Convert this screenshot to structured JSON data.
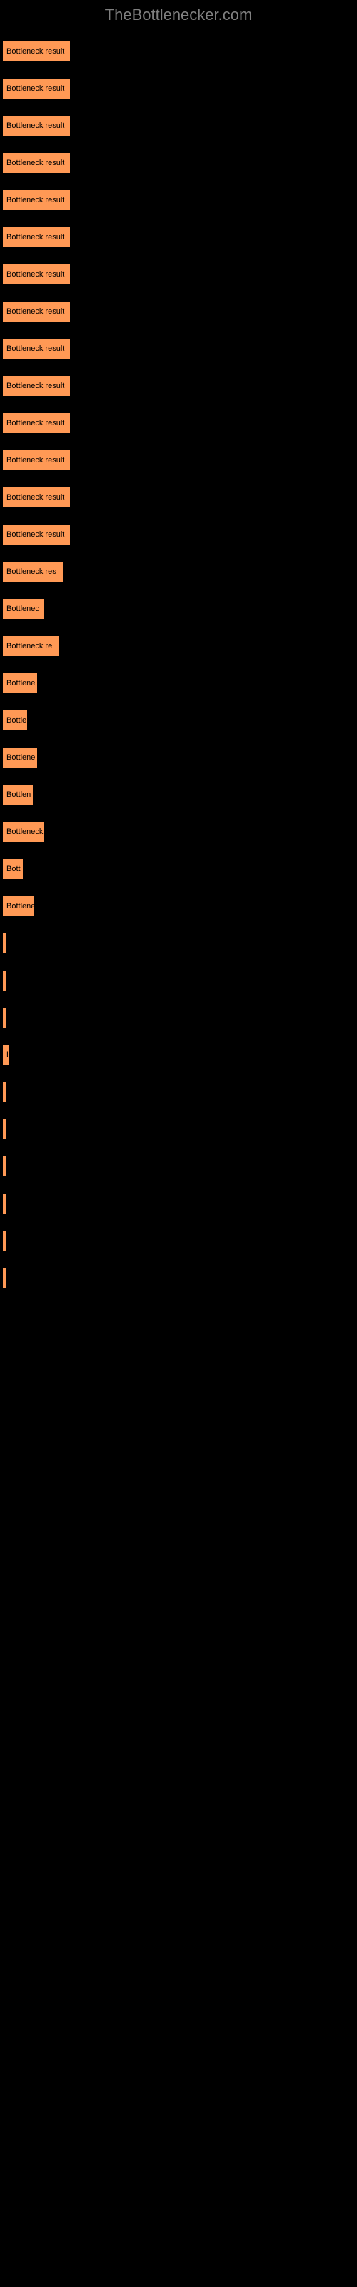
{
  "header": {
    "logo": "TheBottlenecker.com"
  },
  "chart": {
    "type": "bar",
    "bar_color": "#ff9955",
    "text_color": "#000000",
    "background_color": "#000000",
    "label_color": "#808080",
    "max_width": 490,
    "bars": [
      {
        "width": 94,
        "label": "Bottleneck result"
      },
      {
        "width": 94,
        "label": "Bottleneck result"
      },
      {
        "width": 94,
        "label": "Bottleneck result"
      },
      {
        "width": 94,
        "label": "Bottleneck result"
      },
      {
        "width": 94,
        "label": "Bottleneck result"
      },
      {
        "width": 94,
        "label": "Bottleneck result"
      },
      {
        "width": 94,
        "label": "Bottleneck result"
      },
      {
        "width": 94,
        "label": "Bottleneck result"
      },
      {
        "width": 94,
        "label": "Bottleneck result"
      },
      {
        "width": 94,
        "label": "Bottleneck result"
      },
      {
        "width": 94,
        "label": "Bottleneck result"
      },
      {
        "width": 94,
        "label": "Bottleneck result"
      },
      {
        "width": 94,
        "label": "Bottleneck result"
      },
      {
        "width": 94,
        "label": "Bottleneck result"
      },
      {
        "width": 84,
        "label": "Bottleneck res"
      },
      {
        "width": 58,
        "label": "Bottlenec"
      },
      {
        "width": 78,
        "label": "Bottleneck re"
      },
      {
        "width": 48,
        "label": "Bottlene"
      },
      {
        "width": 34,
        "label": "Bottle"
      },
      {
        "width": 48,
        "label": "Bottlene"
      },
      {
        "width": 42,
        "label": "Bottlen"
      },
      {
        "width": 58,
        "label": "Bottleneck"
      },
      {
        "width": 28,
        "label": "Bott"
      },
      {
        "width": 44,
        "label": "Bottlene"
      },
      {
        "width": 0,
        "label": ""
      },
      {
        "width": 0,
        "label": ""
      },
      {
        "width": 0,
        "label": ""
      },
      {
        "width": 8,
        "label": "B"
      },
      {
        "width": 0,
        "label": ""
      },
      {
        "width": 0,
        "label": ""
      },
      {
        "width": 0,
        "label": ""
      },
      {
        "width": 0,
        "label": ""
      },
      {
        "width": 0,
        "label": ""
      },
      {
        "width": 0,
        "label": ""
      }
    ]
  }
}
